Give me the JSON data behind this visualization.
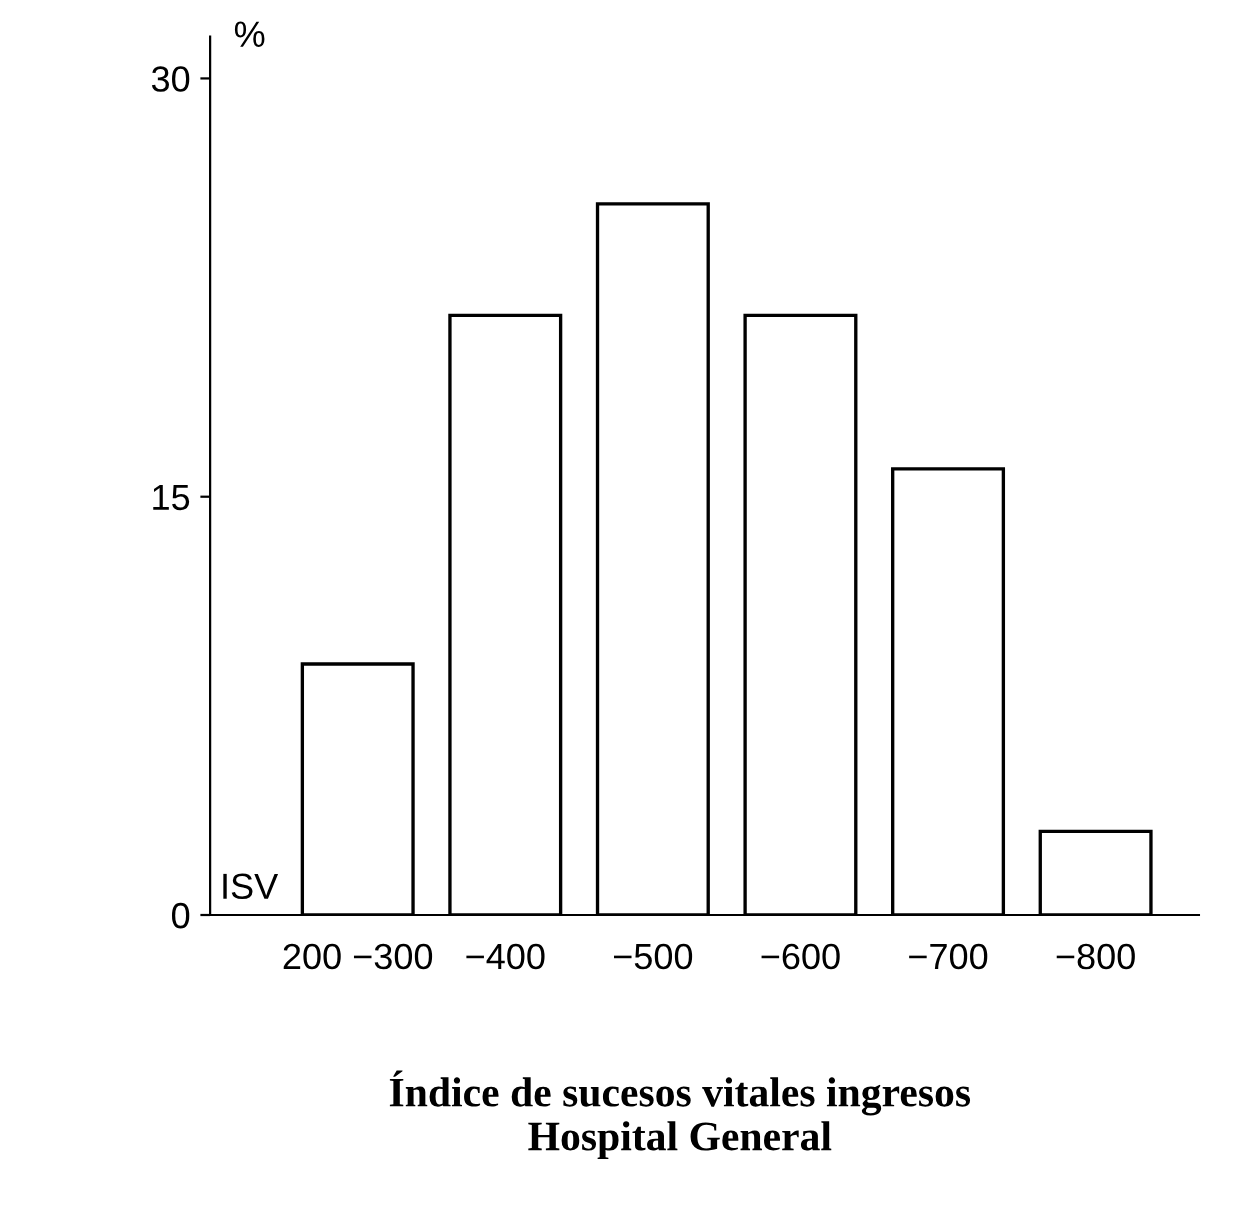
{
  "chart_data": {
    "type": "bar",
    "title": "Índice de sucesos vitales ingresos\nHospital General",
    "ylabel": "%",
    "annotations": [
      "ISV"
    ],
    "categories": [
      "200 −300",
      "−400",
      "−500",
      "−600",
      "−700",
      "−800"
    ],
    "values": [
      9,
      21.5,
      25.5,
      21.5,
      16,
      3
    ],
    "color": "#ffffff",
    "ylim": [
      0,
      31.5
    ],
    "yticks": [
      0,
      15,
      30
    ],
    "grid": false
  }
}
